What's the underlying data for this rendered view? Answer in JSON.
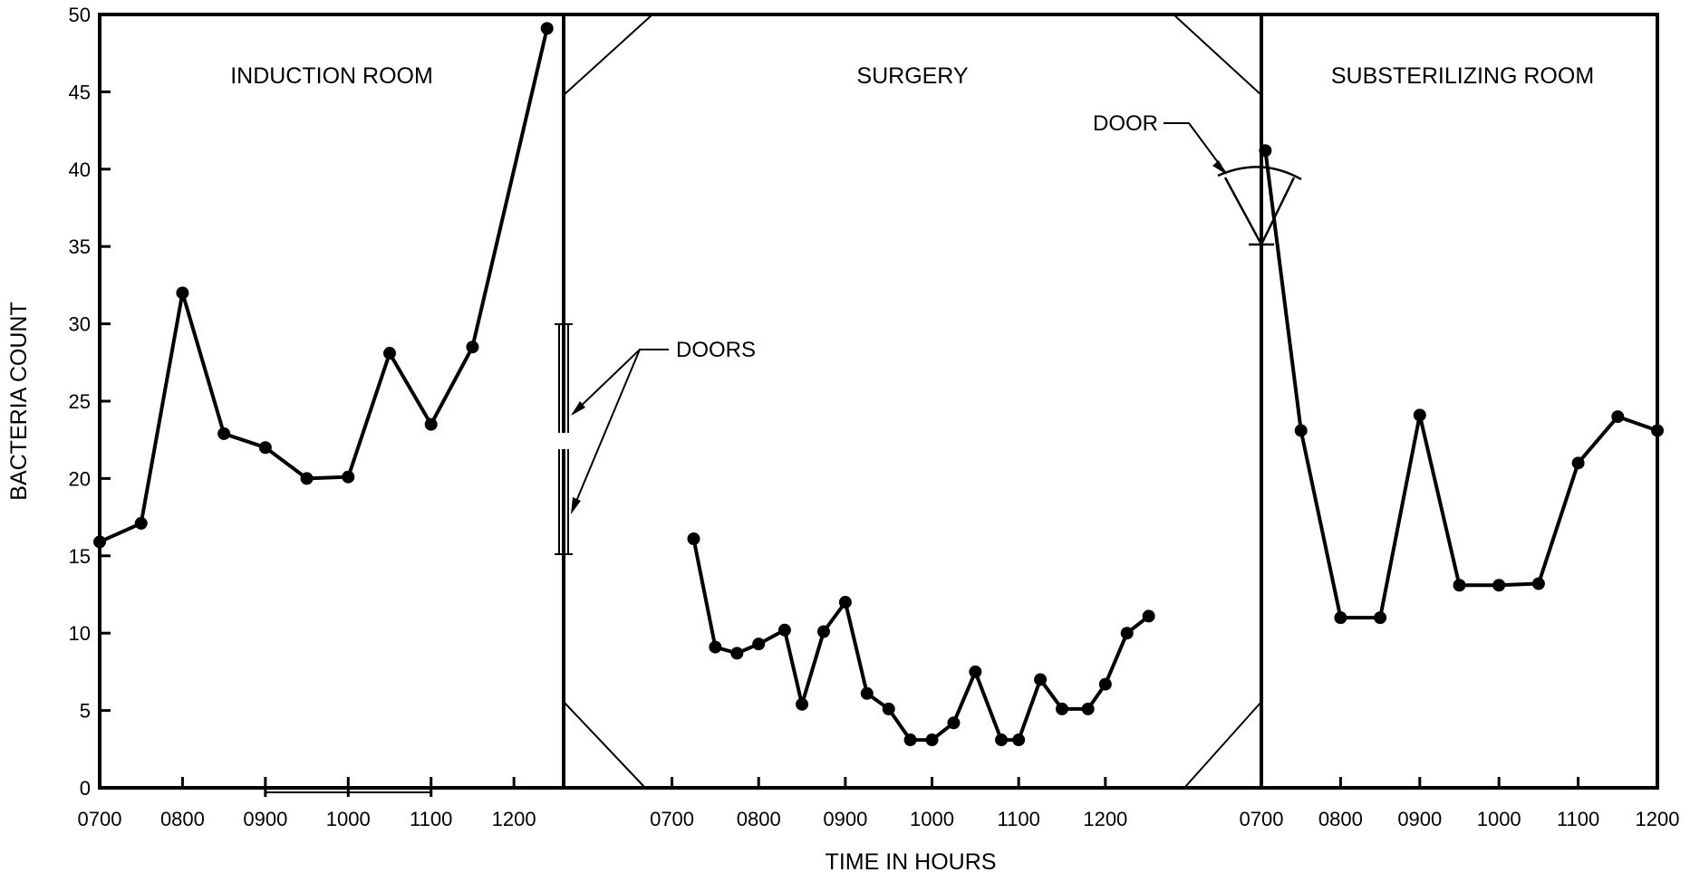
{
  "chart_data": {
    "type": "line",
    "ylabel": "BACTERIA COUNT",
    "xlabel": "TIME IN HOURS",
    "ylim": [
      0,
      50
    ],
    "yticks": [
      "0",
      "5",
      "10",
      "15",
      "20",
      "25",
      "30",
      "35",
      "40",
      "45",
      "50"
    ],
    "grid": false,
    "legend": "none",
    "line_color": "#000000",
    "annotations": {
      "doors": "DOORS",
      "door": "DOOR"
    },
    "panels": [
      {
        "title": "INDUCTION ROOM",
        "xlim": [
          7,
          12.6
        ],
        "xticks": [
          "0700",
          "0800",
          "0900",
          "1000",
          "1100",
          "1200"
        ],
        "series": [
          {
            "x": [
              7.0,
              7.5,
              8.0,
              8.5,
              9.0,
              9.5,
              10.0,
              10.5,
              11.0,
              11.5,
              12.4
            ],
            "y": [
              15.9,
              17.1,
              32.0,
              22.9,
              22.0,
              20.0,
              20.1,
              28.1,
              23.5,
              28.5,
              49.1
            ]
          }
        ]
      },
      {
        "title": "SURGERY",
        "xlim": [
          5.75,
          13.8
        ],
        "xticks": [
          "0700",
          "0800",
          "0900",
          "1000",
          "1100",
          "1200"
        ],
        "series": [
          {
            "x": [
              7.25,
              7.5,
              7.75,
              8.0,
              8.3,
              8.5,
              8.75,
              9.0,
              9.25,
              9.5,
              9.75,
              10.0,
              10.25,
              10.5,
              10.8,
              11.0,
              11.25,
              11.5,
              11.8,
              12.0,
              12.25,
              12.5
            ],
            "y": [
              16.1,
              9.1,
              8.7,
              9.3,
              10.2,
              5.4,
              10.1,
              12.0,
              6.1,
              5.1,
              3.1,
              3.1,
              4.2,
              7.5,
              3.1,
              3.1,
              7.0,
              5.1,
              5.1,
              6.7,
              10.0,
              11.1
            ]
          }
        ]
      },
      {
        "title": "SUBSTERILIZING ROOM",
        "xlim": [
          7,
          12
        ],
        "xticks": [
          "0700",
          "0800",
          "0900",
          "1000",
          "1100",
          "1200"
        ],
        "series": [
          {
            "x": [
              7.05,
              7.5,
              8.0,
              8.5,
              9.0,
              9.5,
              10.0,
              10.5,
              11.0,
              11.5,
              12.0
            ],
            "y": [
              41.2,
              23.1,
              11.0,
              11.0,
              24.1,
              13.1,
              13.1,
              13.2,
              21.0,
              24.0,
              23.1
            ]
          }
        ]
      }
    ]
  }
}
